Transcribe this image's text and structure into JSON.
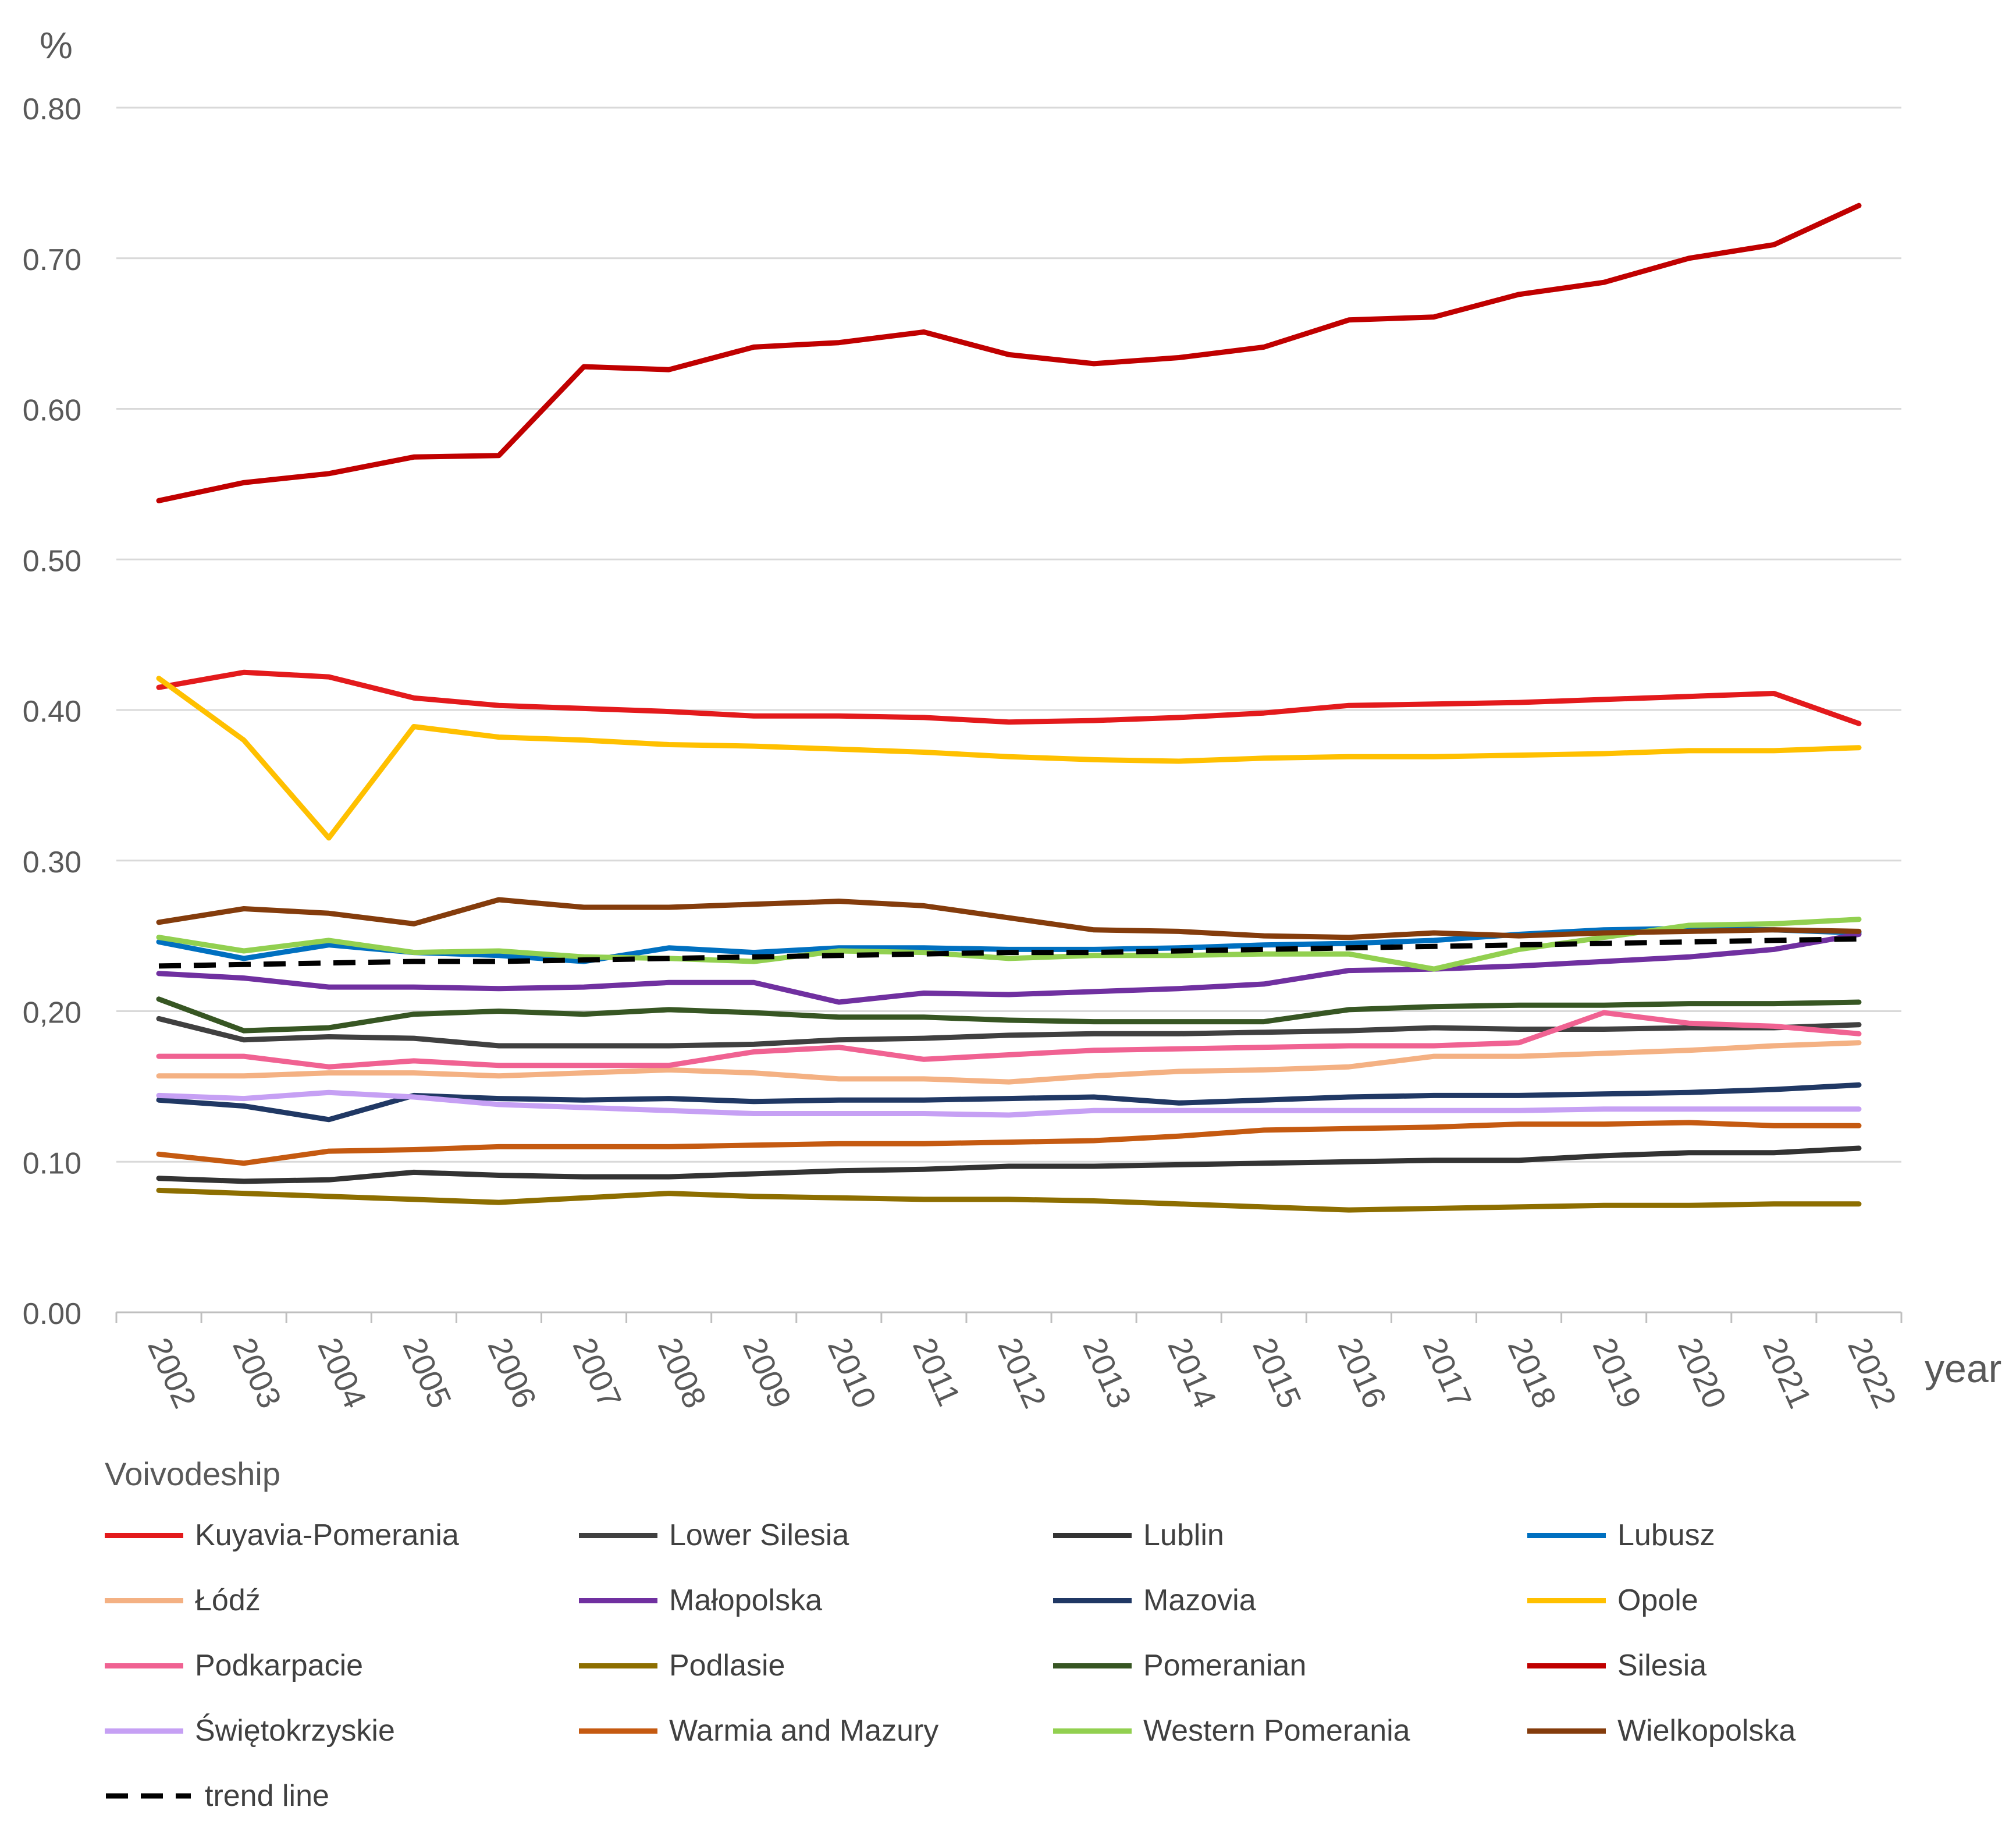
{
  "chart_data": {
    "type": "line",
    "title": "",
    "ylabel": "%",
    "xlabel": "year",
    "ylim": [
      0.0,
      0.8
    ],
    "y_ticks": [
      "0.00",
      "0.10",
      "0,20",
      "0.30",
      "0.40",
      "0.50",
      "0.60",
      "0.70",
      "0.80"
    ],
    "grid": true,
    "legend_position": "bottom",
    "legend_title": "Voivodeship",
    "categories": [
      "2002",
      "2003",
      "2004",
      "2005",
      "2006",
      "2007",
      "2008",
      "2009",
      "2010",
      "2011",
      "2012",
      "2013",
      "2014",
      "2015",
      "2016",
      "2017",
      "2018",
      "2019",
      "2020",
      "2021",
      "2022"
    ],
    "series": [
      {
        "name": "Kuyavia-Pomerania",
        "color": "#e31a1c",
        "values": [
          0.415,
          0.425,
          0.422,
          0.408,
          0.403,
          0.401,
          0.399,
          0.396,
          0.396,
          0.395,
          0.392,
          0.393,
          0.395,
          0.398,
          0.403,
          0.404,
          0.405,
          0.407,
          0.409,
          0.411,
          0.391
        ]
      },
      {
        "name": "Lower Silesia",
        "color": "#404040",
        "values": [
          0.195,
          0.181,
          0.183,
          0.182,
          0.177,
          0.177,
          0.177,
          0.178,
          0.181,
          0.182,
          0.184,
          0.185,
          0.185,
          0.186,
          0.187,
          0.189,
          0.188,
          0.188,
          0.189,
          0.189,
          0.191
        ]
      },
      {
        "name": "Lublin",
        "color": "#333333",
        "values": [
          0.089,
          0.087,
          0.088,
          0.093,
          0.091,
          0.09,
          0.09,
          0.092,
          0.094,
          0.095,
          0.097,
          0.097,
          0.098,
          0.099,
          0.1,
          0.101,
          0.101,
          0.104,
          0.106,
          0.106,
          0.109
        ]
      },
      {
        "name": "Lubusz",
        "color": "#0070c0",
        "values": [
          0.246,
          0.235,
          0.244,
          0.239,
          0.237,
          0.233,
          0.242,
          0.239,
          0.242,
          0.242,
          0.241,
          0.241,
          0.242,
          0.244,
          0.245,
          0.247,
          0.251,
          0.254,
          0.255,
          0.254,
          0.252
        ]
      },
      {
        "name": "Łódź",
        "color": "#f4b183",
        "values": [
          0.157,
          0.157,
          0.159,
          0.159,
          0.157,
          0.159,
          0.161,
          0.159,
          0.155,
          0.155,
          0.153,
          0.157,
          0.16,
          0.161,
          0.163,
          0.17,
          0.17,
          0.172,
          0.174,
          0.177,
          0.179
        ]
      },
      {
        "name": "Małopolska",
        "color": "#7030a0",
        "values": [
          0.225,
          0.222,
          0.216,
          0.216,
          0.215,
          0.216,
          0.219,
          0.219,
          0.206,
          0.212,
          0.211,
          0.213,
          0.215,
          0.218,
          0.227,
          0.228,
          0.23,
          0.233,
          0.236,
          0.241,
          0.251
        ]
      },
      {
        "name": "Mazovia",
        "color": "#203864",
        "values": [
          0.141,
          0.137,
          0.128,
          0.144,
          0.142,
          0.141,
          0.142,
          0.14,
          0.141,
          0.141,
          0.142,
          0.143,
          0.139,
          0.141,
          0.143,
          0.144,
          0.144,
          0.145,
          0.146,
          0.148,
          0.151
        ]
      },
      {
        "name": "Opole",
        "color": "#ffc000",
        "values": [
          0.421,
          0.38,
          0.315,
          0.389,
          0.382,
          0.38,
          0.377,
          0.376,
          0.374,
          0.372,
          0.369,
          0.367,
          0.366,
          0.368,
          0.369,
          0.369,
          0.37,
          0.371,
          0.373,
          0.373,
          0.375
        ]
      },
      {
        "name": "Podkarpacie",
        "color": "#f06292",
        "values": [
          0.17,
          0.17,
          0.163,
          0.167,
          0.164,
          0.164,
          0.164,
          0.173,
          0.176,
          0.168,
          0.171,
          0.174,
          0.175,
          0.176,
          0.177,
          0.177,
          0.179,
          0.199,
          0.192,
          0.19,
          0.185
        ]
      },
      {
        "name": "Podlasie",
        "color": "#8d6e00",
        "values": [
          0.081,
          0.079,
          0.077,
          0.075,
          0.073,
          0.076,
          0.079,
          0.077,
          0.076,
          0.075,
          0.075,
          0.074,
          0.072,
          0.07,
          0.068,
          0.069,
          0.07,
          0.071,
          0.071,
          0.072,
          0.072
        ]
      },
      {
        "name": "Pomeranian",
        "color": "#375623",
        "values": [
          0.208,
          0.187,
          0.189,
          0.198,
          0.2,
          0.198,
          0.201,
          0.199,
          0.196,
          0.196,
          0.194,
          0.193,
          0.193,
          0.193,
          0.201,
          0.203,
          0.204,
          0.204,
          0.205,
          0.205,
          0.206
        ]
      },
      {
        "name": "Silesia",
        "color": "#c00000",
        "values": [
          0.539,
          0.551,
          0.557,
          0.568,
          0.569,
          0.628,
          0.626,
          0.641,
          0.644,
          0.651,
          0.636,
          0.63,
          0.634,
          0.641,
          0.659,
          0.661,
          0.676,
          0.684,
          0.7,
          0.709,
          0.735
        ]
      },
      {
        "name": "Świętokrzyskie",
        "color": "#c6a0f4",
        "values": [
          0.144,
          0.142,
          0.146,
          0.143,
          0.138,
          0.136,
          0.134,
          0.132,
          0.132,
          0.132,
          0.131,
          0.134,
          0.134,
          0.134,
          0.134,
          0.134,
          0.134,
          0.135,
          0.135,
          0.135,
          0.135
        ]
      },
      {
        "name": "Warmia and Mazury",
        "color": "#c55a11",
        "values": [
          0.105,
          0.099,
          0.107,
          0.108,
          0.11,
          0.11,
          0.11,
          0.111,
          0.112,
          0.112,
          0.113,
          0.114,
          0.117,
          0.121,
          0.122,
          0.123,
          0.125,
          0.125,
          0.126,
          0.124,
          0.124
        ]
      },
      {
        "name": "Western Pomerania",
        "color": "#92d050",
        "values": [
          0.249,
          0.24,
          0.247,
          0.239,
          0.24,
          0.236,
          0.235,
          0.233,
          0.24,
          0.239,
          0.235,
          0.237,
          0.237,
          0.238,
          0.238,
          0.228,
          0.241,
          0.249,
          0.257,
          0.258,
          0.261
        ]
      },
      {
        "name": "Wielkopolska",
        "color": "#843c0c",
        "values": [
          0.259,
          0.268,
          0.265,
          0.258,
          0.274,
          0.269,
          0.269,
          0.271,
          0.273,
          0.27,
          0.262,
          0.254,
          0.253,
          0.25,
          0.249,
          0.252,
          0.25,
          0.252,
          0.253,
          0.254,
          0.253
        ]
      }
    ],
    "trend_line": {
      "name": "trend line",
      "color": "#000000",
      "values": [
        0.23,
        0.231,
        0.232,
        0.233,
        0.233,
        0.234,
        0.235,
        0.236,
        0.237,
        0.238,
        0.239,
        0.239,
        0.24,
        0.241,
        0.242,
        0.243,
        0.244,
        0.245,
        0.246,
        0.247,
        0.248
      ]
    }
  }
}
